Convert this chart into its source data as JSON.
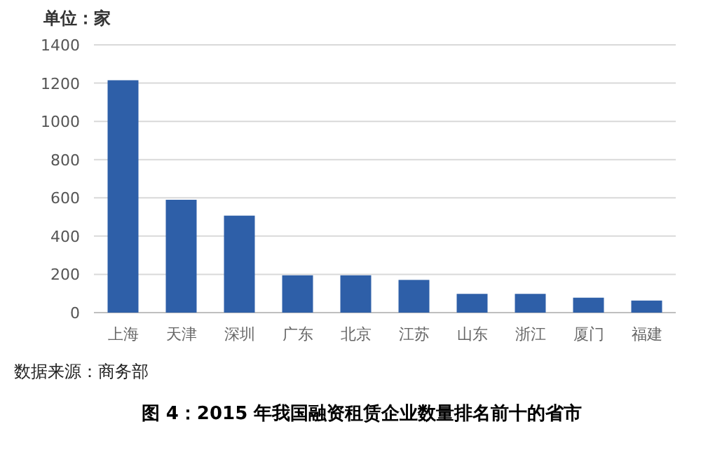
{
  "chart_data": {
    "type": "bar",
    "title": "图 4：2015 年我国融资租赁企业数量排名前十的省市",
    "ylabel": "单位：家",
    "categories": [
      "上海",
      "天津",
      "深圳",
      "广东",
      "北京",
      "江苏",
      "山东",
      "浙江",
      "厦门",
      "福建"
    ],
    "values": [
      1215,
      590,
      507,
      195,
      195,
      171,
      98,
      98,
      78,
      63
    ],
    "color": "#2e5fa8",
    "ylim": [
      0,
      1400
    ],
    "yticks": [
      0,
      200,
      400,
      600,
      800,
      1000,
      1200,
      1400
    ],
    "grid": "y",
    "annotations": [
      "数据来源：商务部"
    ]
  }
}
